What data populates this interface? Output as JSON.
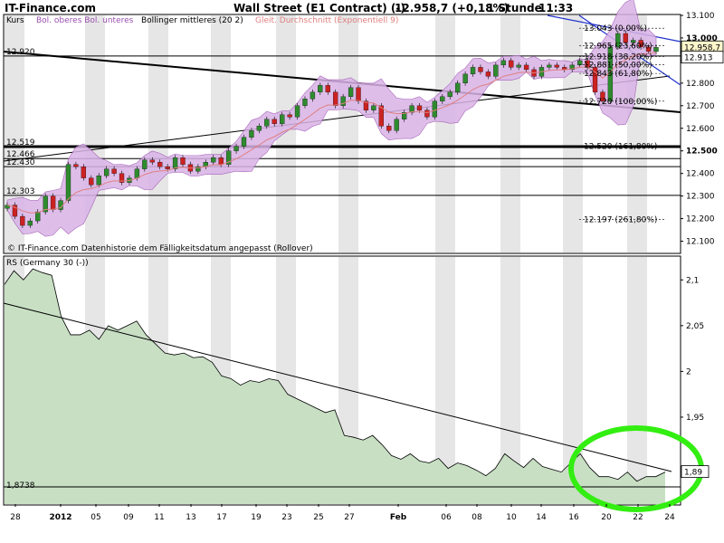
{
  "header": {
    "site": "IT-Finance.com",
    "title": "Wall Street (E1 Contract) (-)",
    "quote": "12.958,7 (+0,18%)",
    "interval": "1 Stunde",
    "time": "11:33"
  },
  "legend": {
    "kurs": "Kurs",
    "bands": "Bol. oberes Bol. unteres",
    "middle": "Bollinger mittleres (20 2)",
    "ema": "Gleit. Durchschnitt (Exponentiell 9)",
    "band_color": "#cc88dd",
    "ema_color": "#e08080"
  },
  "footer_note": "© IT-Finance.com  Datenhistorie dem Fälligkeitsdatum angepasst (Rollover)",
  "colors": {
    "candle_up": "#2e8b2e",
    "candle_down": "#cc2222",
    "band_fill": "#d9b3e6",
    "band_stroke": "#9a4fb0",
    "rs_fill": "#c8dfc4",
    "rs_line": "#000000",
    "highlight": "#33ee11",
    "channel": "#2233cc",
    "grid_band": "#e6e6e6"
  },
  "chart_data": [
    {
      "type": "candlestick",
      "name": "Kurs",
      "ylim": [
        12050,
        13100
      ],
      "y_ticks": [
        "12.100",
        "12.200",
        "12.300",
        "12.400",
        "12.500",
        "12.600",
        "12.700",
        "12.800",
        "12.900",
        "13.000",
        "13.100"
      ],
      "x_ticks": [
        "28",
        "2012",
        "05",
        "09",
        "11",
        "13",
        "17",
        "19",
        "23",
        "25",
        "27",
        "Feb",
        "06",
        "08",
        "10",
        "14",
        "16",
        "20",
        "22",
        "24"
      ],
      "levels": [
        {
          "value": 12920,
          "label": "12.920"
        },
        {
          "value": 12519,
          "label": "12.519"
        },
        {
          "value": 12466,
          "label": "12.466"
        },
        {
          "value": 12430,
          "label": "12.430"
        },
        {
          "value": 12303,
          "label": "12.303"
        }
      ],
      "fib_levels": [
        {
          "value": 13043,
          "label": "13.043 (0,00%)"
        },
        {
          "value": 12965,
          "label": "12.965 (23,60%)"
        },
        {
          "value": 12918,
          "label": "12.918 (38,20%)"
        },
        {
          "value": 12881,
          "label": "12.881 (50,00%)"
        },
        {
          "value": 12843,
          "label": "12.843 (61,80%)"
        },
        {
          "value": 12720,
          "label": "12.720 (100,00%)"
        },
        {
          "value": 12520,
          "label": "12.520 (161,80%)"
        },
        {
          "value": 12197,
          "label": "12.197 (261,80%)"
        }
      ],
      "price_tags": [
        {
          "value": 12958.7,
          "label": "12.958,7"
        },
        {
          "value": 12913,
          "label": "12.913"
        }
      ],
      "closes": [
        12260,
        12210,
        12170,
        12190,
        12230,
        12300,
        12240,
        12280,
        12440,
        12430,
        12380,
        12350,
        12390,
        12420,
        12400,
        12360,
        12380,
        12420,
        12460,
        12450,
        12430,
        12420,
        12470,
        12440,
        12410,
        12430,
        12450,
        12470,
        12440,
        12500,
        12520,
        12560,
        12590,
        12610,
        12640,
        12620,
        12660,
        12650,
        12700,
        12730,
        12760,
        12790,
        12760,
        12700,
        12740,
        12780,
        12720,
        12680,
        12700,
        12610,
        12590,
        12640,
        12670,
        12700,
        12680,
        12650,
        12720,
        12740,
        12760,
        12800,
        12840,
        12870,
        12850,
        12830,
        12880,
        12900,
        12870,
        12880,
        12860,
        12830,
        12870,
        12880,
        12870,
        12860,
        12880,
        12900,
        12870,
        12760,
        12720,
        12960,
        13020,
        12980,
        12990,
        12960,
        12940,
        12958.7
      ]
    },
    {
      "type": "area",
      "name": "RS (Germany 30 (-))",
      "label": "RS (Germany 30 (-))",
      "ylim": [
        1.855,
        2.125
      ],
      "y_ticks": [
        "1,95",
        "2",
        "2,05",
        "2,1"
      ],
      "last_label": "1,89",
      "min_label": "1,8738",
      "min_value": 1.8738,
      "values": [
        2.095,
        2.11,
        2.1,
        2.112,
        2.108,
        2.105,
        2.06,
        2.04,
        2.04,
        2.045,
        2.035,
        2.05,
        2.045,
        2.05,
        2.055,
        2.04,
        2.03,
        2.02,
        2.018,
        2.02,
        2.015,
        2.016,
        2.01,
        1.995,
        1.992,
        1.985,
        1.99,
        1.988,
        1.992,
        1.99,
        1.975,
        1.97,
        1.965,
        1.96,
        1.955,
        1.958,
        1.93,
        1.928,
        1.925,
        1.93,
        1.92,
        1.908,
        1.904,
        1.91,
        1.902,
        1.9,
        1.905,
        1.894,
        1.9,
        1.897,
        1.892,
        1.886,
        1.894,
        1.91,
        1.902,
        1.895,
        1.905,
        1.896,
        1.893,
        1.89,
        1.9,
        1.91,
        1.895,
        1.885,
        1.885,
        1.882,
        1.89,
        1.88,
        1.885,
        1.885,
        1.89
      ]
    }
  ]
}
